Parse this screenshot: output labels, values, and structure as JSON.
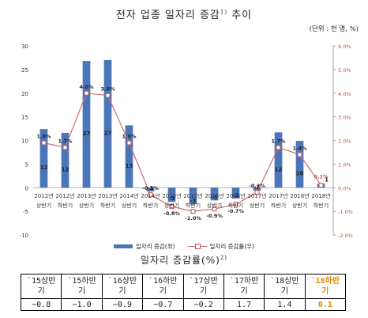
{
  "title": "전자 업종 일자리 증감",
  "title_note": "1)",
  "unit": "(단위 : 천 명, %)",
  "chart_data": {
    "type": "bar+line",
    "categories": [
      [
        "2012년",
        "상반기"
      ],
      [
        "2012년",
        "하반기"
      ],
      [
        "2013년",
        "상반기"
      ],
      [
        "2013년",
        "하반기"
      ],
      [
        "2014년",
        "상반기"
      ],
      [
        "2014년",
        "하반기"
      ],
      [
        "2015년",
        "상반기"
      ],
      [
        "2015년",
        "하반기"
      ],
      [
        "2016년",
        "상반기"
      ],
      [
        "2016년",
        "하반기"
      ],
      [
        "2017년",
        "상반기"
      ],
      [
        "2017년",
        "하반기"
      ],
      [
        "2018년",
        "상반기"
      ],
      [
        "2018년",
        "하반기"
      ]
    ],
    "series": [
      {
        "name": "일자리 증감(좌)",
        "type": "bar",
        "axis": "left",
        "values": [
          12.4,
          11.6,
          26.8,
          27.0,
          13.2,
          -0.8,
          -3.0,
          -3.5,
          -2.7,
          -2.3,
          -0.6,
          11.7,
          9.9,
          0.8
        ],
        "labels": [
          "12",
          "12",
          "27",
          "27",
          "13",
          "-1",
          "-3",
          "-3",
          "-3",
          "-2",
          "-1",
          "12",
          "10",
          "1"
        ]
      },
      {
        "name": "일자리 증감률(우)",
        "type": "line",
        "axis": "right",
        "values": [
          1.9,
          1.7,
          4.0,
          3.9,
          1.9,
          -0.3,
          -0.8,
          -1.0,
          -0.9,
          -0.7,
          -0.2,
          1.7,
          1.4,
          0.1
        ],
        "labels": [
          "1.9%",
          "1.7%",
          "4.0%",
          "3.9%",
          "1.9%",
          "-0.3%",
          "-0.8%",
          "-1.0%",
          "-0.9%",
          "-0.7%",
          "-0.2%",
          "1.7%",
          "1.4%",
          "0.1%"
        ]
      }
    ],
    "y_left": {
      "min": -10,
      "max": 30,
      "ticks": [
        "-10",
        "-5",
        "0",
        "5",
        "10",
        "15",
        "20",
        "25",
        "30"
      ]
    },
    "y_right": {
      "min": -2,
      "max": 6,
      "ticks": [
        "-2.0%",
        "-1.0%",
        "0.0%",
        "1.0%",
        "2.0%",
        "3.0%",
        "4.0%",
        "5.0%",
        "6.0%"
      ]
    },
    "colors": {
      "bar": "#4a76b9",
      "line": "#d06b6b",
      "marker": "#c0504d",
      "highlight": "#e08a00",
      "right_axis": "#c0504d"
    }
  },
  "table": {
    "title": "일자리 증감률(%)",
    "title_note": "2)",
    "headers": [
      [
        "`15상반",
        "기"
      ],
      [
        "`15하반",
        "기"
      ],
      [
        "`16상반",
        "기"
      ],
      [
        "`16하반",
        "기"
      ],
      [
        "`17상반",
        "기"
      ],
      [
        "`17하반",
        "기"
      ],
      [
        "`18상반",
        "기"
      ],
      [
        "`18하반",
        "기"
      ]
    ],
    "values": [
      "−0.8",
      "−1.0",
      "−0.9",
      "−0.7",
      "−0.2",
      "1.7",
      "1.4",
      "0.1"
    ],
    "highlight_index": 7
  }
}
